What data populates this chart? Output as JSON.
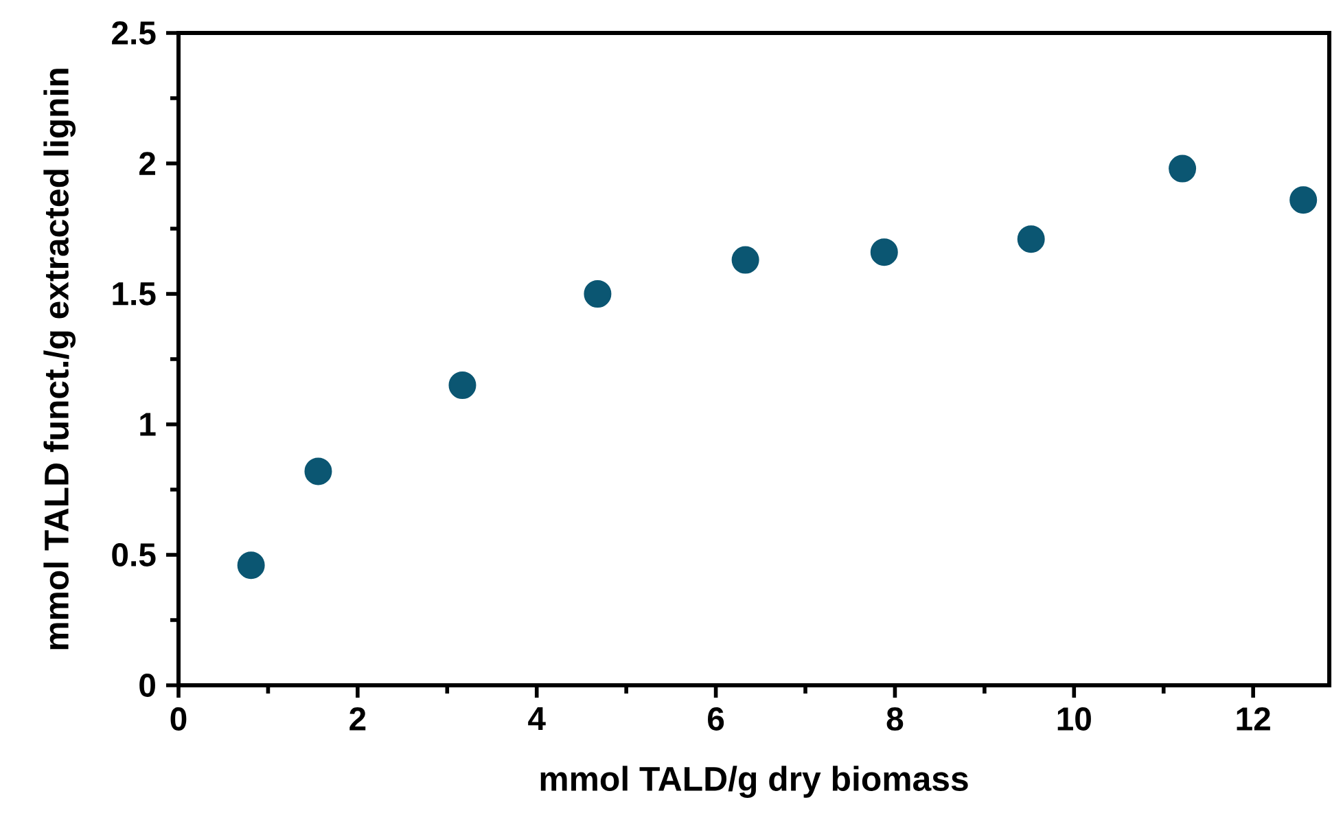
{
  "chart_data": {
    "type": "scatter",
    "xlabel": "mmol TALD/g dry biomass",
    "ylabel": "mmol TALD funct./g extracted lignin",
    "x": [
      0.81,
      1.56,
      3.17,
      4.68,
      6.33,
      7.88,
      9.52,
      11.21,
      12.56
    ],
    "values": [
      0.46,
      0.82,
      1.15,
      1.5,
      1.63,
      1.66,
      1.71,
      1.98,
      1.86
    ],
    "color": "#0b5672",
    "xlim": [
      0,
      12.85
    ],
    "ylim": [
      0,
      2.5
    ],
    "xticks": [
      0,
      2,
      4,
      6,
      8,
      10,
      12
    ],
    "yticks": [
      0,
      0.5,
      1,
      1.5,
      2,
      2.5
    ],
    "grid": false
  }
}
